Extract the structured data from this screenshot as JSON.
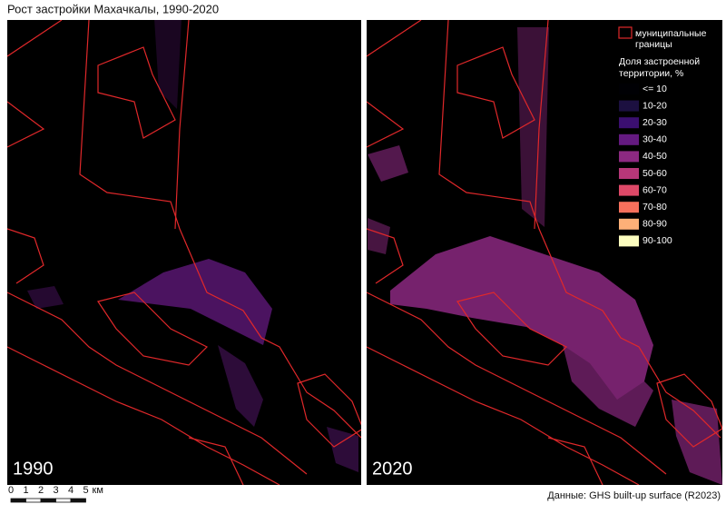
{
  "header": {
    "title": "Рост застройки Махачкалы, 1990-2020"
  },
  "panels": [
    {
      "label": "1990"
    },
    {
      "label": "2020"
    }
  ],
  "legend": {
    "boundary_label": [
      "муниципальные",
      "границы"
    ],
    "boundary_color": "#e0282a",
    "title": [
      "Доля застроенной",
      "территории, %"
    ],
    "entries": [
      {
        "label": "<= 10",
        "color": "#000004"
      },
      {
        "label": "10-20",
        "color": "#1c1040"
      },
      {
        "label": "20-30",
        "color": "#3b0f70"
      },
      {
        "label": "30-40",
        "color": "#641a80"
      },
      {
        "label": "40-50",
        "color": "#8c2981"
      },
      {
        "label": "50-60",
        "color": "#b73779"
      },
      {
        "label": "60-70",
        "color": "#de4968"
      },
      {
        "label": "70-80",
        "color": "#f7705c"
      },
      {
        "label": "80-90",
        "color": "#feb078"
      },
      {
        "label": "90-100",
        "color": "#fcfdbf"
      }
    ]
  },
  "scale_bar": {
    "ticks": [
      "0",
      "1",
      "2",
      "3",
      "4",
      "5"
    ],
    "unit": "км"
  },
  "source": "Данные: GHS built-up surface (R2023)"
}
